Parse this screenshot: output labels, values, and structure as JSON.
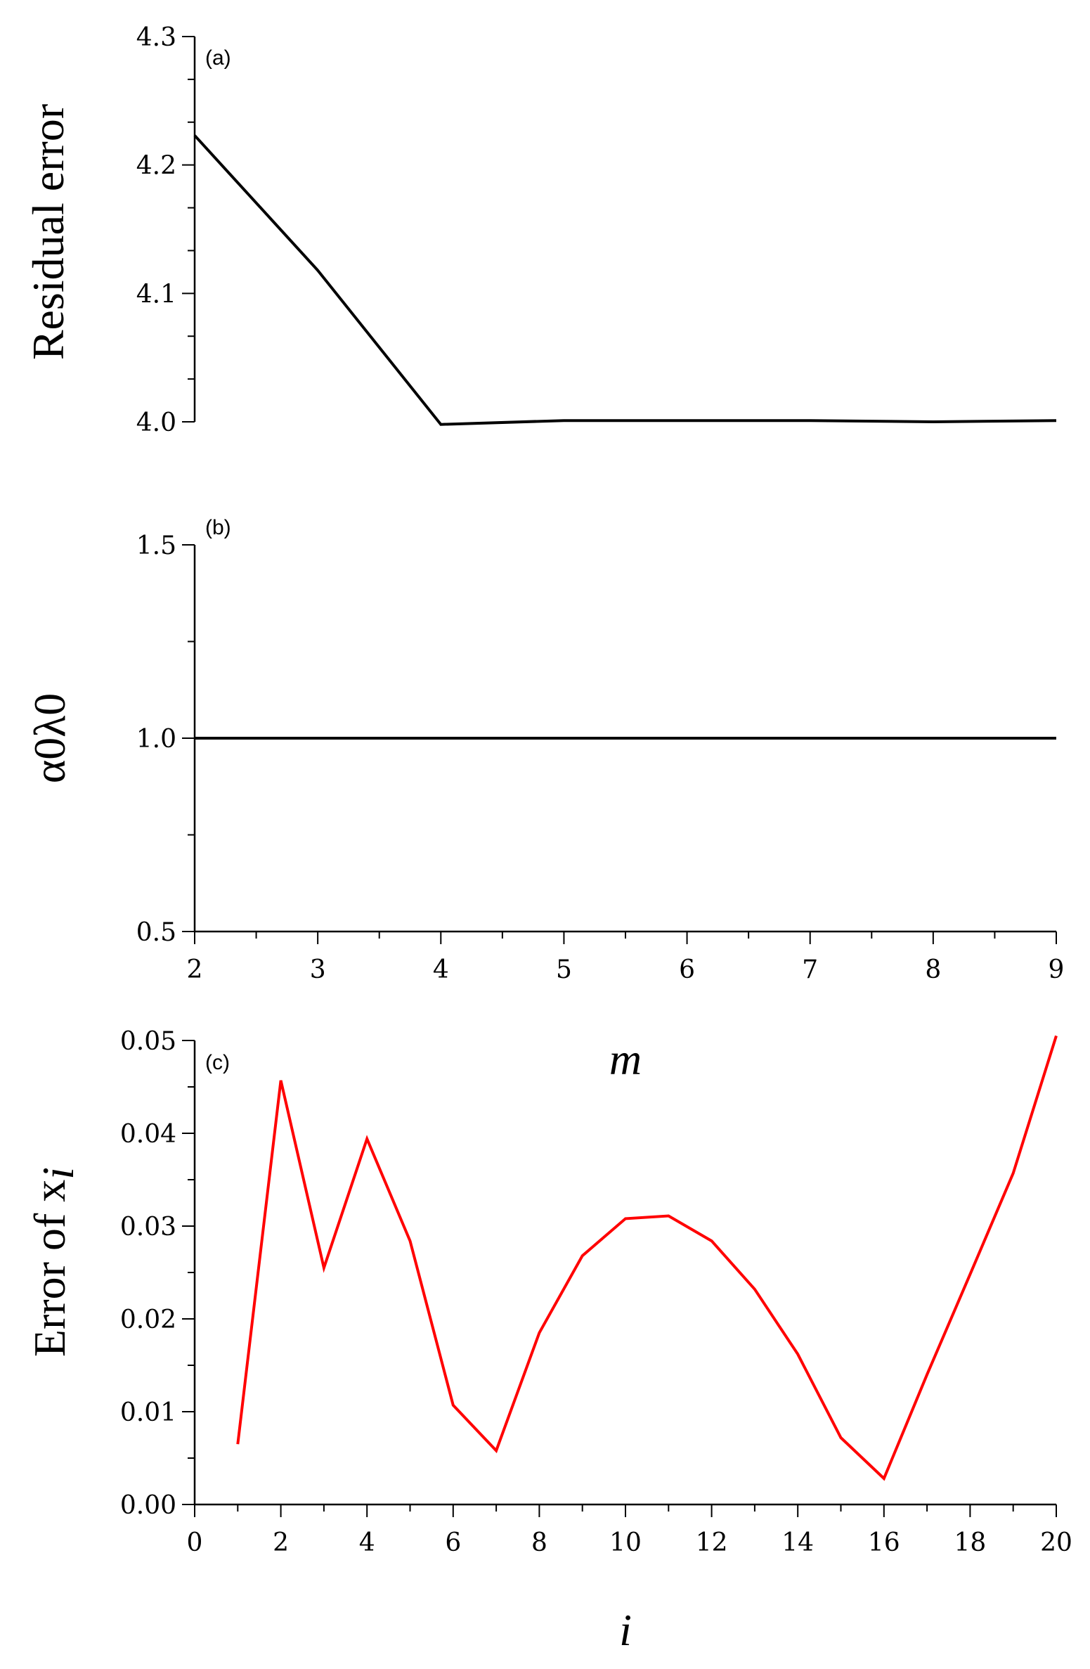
{
  "chart_data": [
    {
      "type": "line",
      "panel_label": "(a)",
      "ylabel": "Residual error",
      "ylim": [
        4.0,
        4.3
      ],
      "yticks": [
        "4.0",
        "4.1",
        "4.2",
        "4.3"
      ],
      "xlim": [
        2,
        9
      ],
      "series": [
        {
          "color": "#000000",
          "x": [
            2,
            3,
            4,
            5,
            6,
            7,
            8,
            9
          ],
          "values": [
            4.223,
            4.118,
            3.998,
            4.001,
            4.001,
            4.001,
            4.0,
            4.001
          ]
        }
      ]
    },
    {
      "type": "line",
      "panel_label": "(b)",
      "ylabel": "α0λ0",
      "ylim": [
        0.5,
        1.5
      ],
      "yticks": [
        "0.5",
        "1.0",
        "1.5"
      ],
      "xlabel": "m",
      "xlim": [
        2,
        9
      ],
      "xticks": [
        "2",
        "3",
        "4",
        "5",
        "6",
        "7",
        "8",
        "9"
      ],
      "series": [
        {
          "color": "#000000",
          "x": [
            2,
            3,
            4,
            5,
            6,
            7,
            8,
            9
          ],
          "values": [
            1.0,
            1.0,
            1.0,
            1.0,
            1.0,
            1.0,
            1.0,
            1.0
          ]
        }
      ]
    },
    {
      "type": "line",
      "panel_label": "(c)",
      "ylabel": "Error of x",
      "ylabel_sub": "i",
      "xlabel": "i",
      "ylim": [
        0.0,
        0.05
      ],
      "yticks": [
        "0.00",
        "0.01",
        "0.02",
        "0.03",
        "0.04",
        "0.05"
      ],
      "xlim": [
        0,
        20
      ],
      "xticks": [
        "0",
        "2",
        "4",
        "6",
        "8",
        "10",
        "12",
        "14",
        "16",
        "18",
        "20"
      ],
      "series": [
        {
          "color": "#ff0000",
          "x": [
            1,
            2,
            3,
            4,
            5,
            6,
            7,
            8,
            9,
            10,
            11,
            12,
            13,
            14,
            15,
            16,
            17,
            18,
            19,
            20
          ],
          "values": [
            0.0065,
            0.0457,
            0.0255,
            0.0394,
            0.0284,
            0.0107,
            0.0058,
            0.0185,
            0.0268,
            0.0308,
            0.0311,
            0.0284,
            0.0232,
            0.0162,
            0.0072,
            0.0028,
            0.014,
            0.0248,
            0.0357,
            0.0505
          ]
        }
      ]
    }
  ]
}
